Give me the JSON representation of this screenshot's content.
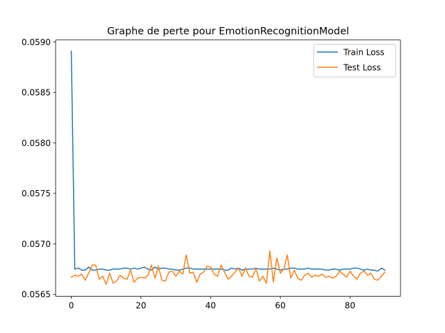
{
  "chart_data": {
    "type": "line",
    "title": "Graphe de perte pour EmotionRecognitionModel",
    "xlabel": "",
    "ylabel": "",
    "xlim": [
      -4.5,
      94.5
    ],
    "ylim": [
      0.05648,
      0.05902
    ],
    "x_ticks": [
      0,
      20,
      40,
      60,
      80
    ],
    "x_tick_labels": [
      "0",
      "20",
      "40",
      "60",
      "80"
    ],
    "y_ticks": [
      0.0565,
      0.057,
      0.0575,
      0.058,
      0.0585,
      0.059
    ],
    "y_tick_labels": [
      "0.0565",
      "0.0570",
      "0.0575",
      "0.0580",
      "0.0585",
      "0.0590"
    ],
    "grid": false,
    "legend_position": "top-right",
    "series": [
      {
        "name": "Train Loss",
        "color": "#1f77b4",
        "values": [
          0.05891,
          0.05675,
          0.05676,
          0.05674,
          0.05674,
          0.05677,
          0.05674,
          0.05674,
          0.05675,
          0.05675,
          0.05674,
          0.05674,
          0.05675,
          0.05675,
          0.05675,
          0.05676,
          0.05676,
          0.05675,
          0.05676,
          0.05675,
          0.05676,
          0.05677,
          0.05675,
          0.05674,
          0.05677,
          0.05675,
          0.05676,
          0.05676,
          0.05675,
          0.05675,
          0.05674,
          0.05674,
          0.05675,
          0.05676,
          0.05676,
          0.05675,
          0.05675,
          0.05675,
          0.05675,
          0.05675,
          0.05675,
          0.05675,
          0.05675,
          0.05675,
          0.05674,
          0.05674,
          0.05676,
          0.05675,
          0.05676,
          0.05674,
          0.05675,
          0.05675,
          0.05675,
          0.05676,
          0.05675,
          0.05675,
          0.05675,
          0.05675,
          0.05676,
          0.05675,
          0.05674,
          0.05675,
          0.05675,
          0.05676,
          0.05676,
          0.05675,
          0.05675,
          0.05675,
          0.05676,
          0.05675,
          0.05675,
          0.05675,
          0.05675,
          0.05674,
          0.05674,
          0.05675,
          0.05675,
          0.05674,
          0.05675,
          0.05675,
          0.05675,
          0.05676,
          0.05676,
          0.05675,
          0.05674,
          0.05675,
          0.05674,
          0.05674,
          0.05673,
          0.05676,
          0.05674
        ]
      },
      {
        "name": "Test Loss",
        "color": "#ff7f0e",
        "values": [
          0.05667,
          0.05669,
          0.05668,
          0.0567,
          0.05664,
          0.05671,
          0.05679,
          0.05679,
          0.05665,
          0.05668,
          0.0566,
          0.05671,
          0.05661,
          0.05663,
          0.05669,
          0.05666,
          0.05665,
          0.05674,
          0.05662,
          0.05666,
          0.05667,
          0.05666,
          0.05669,
          0.05679,
          0.05666,
          0.05678,
          0.05664,
          0.05663,
          0.05672,
          0.05673,
          0.05668,
          0.05673,
          0.0567,
          0.05689,
          0.05671,
          0.05672,
          0.05662,
          0.0567,
          0.05672,
          0.05678,
          0.05677,
          0.0567,
          0.05668,
          0.05679,
          0.05672,
          0.05665,
          0.05668,
          0.05672,
          0.05676,
          0.05668,
          0.05676,
          0.05668,
          0.05667,
          0.05676,
          0.05663,
          0.05668,
          0.05661,
          0.05693,
          0.05662,
          0.05686,
          0.05671,
          0.05675,
          0.05689,
          0.05666,
          0.05674,
          0.05666,
          0.05664,
          0.05669,
          0.05671,
          0.05667,
          0.05669,
          0.05668,
          0.0567,
          0.05667,
          0.05668,
          0.05666,
          0.05668,
          0.05673,
          0.0567,
          0.05667,
          0.05673,
          0.05668,
          0.05665,
          0.05671,
          0.05673,
          0.05669,
          0.05671,
          0.05665,
          0.05664,
          0.05668,
          0.05672
        ]
      }
    ]
  }
}
